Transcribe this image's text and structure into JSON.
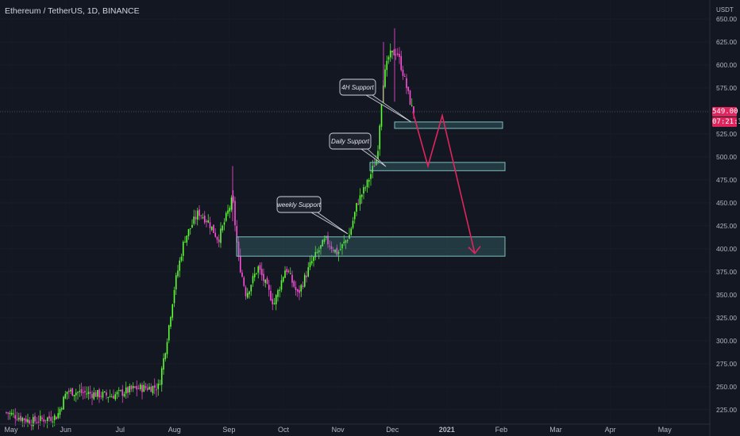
{
  "header": {
    "title": "Ethereum / TetherUS, 1D, BINANCE"
  },
  "price_axis": {
    "unit": "USDT",
    "last_price_label": "549.00",
    "countdown_label": "07:21:35",
    "colors": {
      "up": "#5cff32",
      "down": "#ff4fd8",
      "badge": "#e0245e"
    }
  },
  "chart_data": {
    "type": "candlestick",
    "symbol": "ETH/USDT",
    "timeframe": "1D",
    "ylim": [
      205,
      675
    ],
    "yticks": [
      225,
      250,
      275,
      300,
      325,
      350,
      375,
      400,
      425,
      450,
      475,
      500,
      525,
      550,
      575,
      600,
      625,
      650,
      675
    ],
    "x_labels": [
      "May",
      "Jun",
      "Jul",
      "Aug",
      "Sep",
      "Oct",
      "Nov",
      "Dec",
      "2021",
      "Feb",
      "Mar",
      "Apr",
      "May"
    ],
    "current_price": 549.0,
    "key_points": [
      {
        "date": "May",
        "price": 205
      },
      {
        "date": "Jun",
        "price": 240
      },
      {
        "date": "Jul",
        "price": 245
      },
      {
        "date": "Aug",
        "price": 395
      },
      {
        "date": "Aug-mid",
        "price": 445
      },
      {
        "date": "Sep-start",
        "price": 470
      },
      {
        "date": "Sep",
        "price": 350
      },
      {
        "date": "Oct",
        "price": 355
      },
      {
        "date": "Nov",
        "price": 395
      },
      {
        "date": "Nov-end",
        "price": 590
      },
      {
        "date": "Dec",
        "price": 615
      },
      {
        "date": "Dec-mid",
        "price": 549
      }
    ],
    "zones": [
      {
        "name": "4H Support",
        "low": 531,
        "high": 538
      },
      {
        "name": "Daily Support",
        "low": 485,
        "high": 494
      },
      {
        "name": "weekly Support",
        "low": 392,
        "high": 413
      }
    ],
    "annotations": [
      "4H Support",
      "Daily Support",
      "weekly Support"
    ],
    "projection": [
      549,
      490,
      545,
      395
    ]
  }
}
